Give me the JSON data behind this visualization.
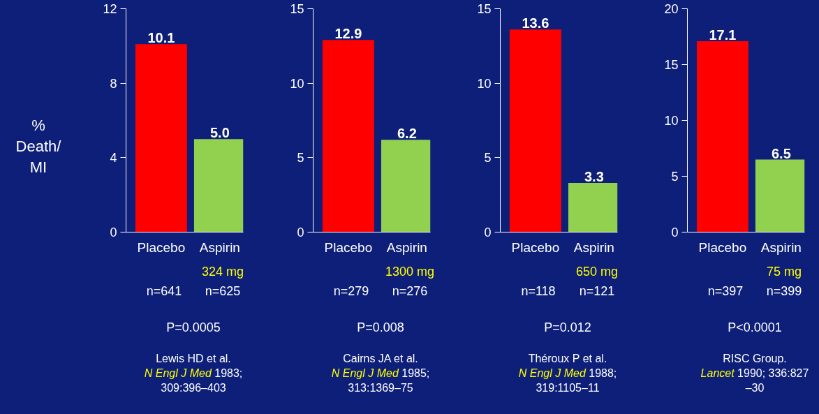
{
  "chart_data": [
    {
      "type": "bar",
      "ylabel": "% Death/ MI",
      "categories": [
        "Placebo",
        "Aspirin"
      ],
      "values": [
        10.1,
        5.0
      ],
      "value_labels": [
        "10.1",
        "5.0"
      ],
      "colors": [
        "#ff0000",
        "#92d050"
      ],
      "ylim": [
        0,
        12
      ],
      "yticks": [
        0,
        4,
        8,
        12
      ],
      "annotations": [
        "324 mg",
        "n=641",
        "n=625",
        "P=0.0005",
        "Lewis HD et al.",
        "N Engl J Med",
        "1983;",
        "309:396–403"
      ]
    },
    {
      "type": "bar",
      "categories": [
        "Placebo",
        "Aspirin"
      ],
      "values": [
        12.9,
        6.2
      ],
      "value_labels": [
        "12.9",
        "6.2"
      ],
      "colors": [
        "#ff0000",
        "#92d050"
      ],
      "ylim": [
        0,
        15
      ],
      "yticks": [
        0,
        5,
        10,
        15
      ],
      "annotations": [
        "1300 mg",
        "n=279",
        "n=276",
        "P=0.008",
        "Cairns JA et al.",
        "N Engl J Med",
        "1985;",
        "313:1369–75"
      ]
    },
    {
      "type": "bar",
      "categories": [
        "Placebo",
        "Aspirin"
      ],
      "values": [
        13.6,
        3.3
      ],
      "value_labels": [
        "13.6",
        "3.3"
      ],
      "colors": [
        "#ff0000",
        "#92d050"
      ],
      "ylim": [
        0,
        15
      ],
      "yticks": [
        0,
        5,
        10,
        15
      ],
      "annotations": [
        "650 mg",
        "n=118",
        "n=121",
        "P=0.012",
        "Théroux P et al.",
        "N Engl J Med",
        "1988;",
        "319:1105–11"
      ]
    },
    {
      "type": "bar",
      "categories": [
        "Placebo",
        "Aspirin"
      ],
      "values": [
        17.1,
        6.5
      ],
      "value_labels": [
        "17.1",
        "6.5"
      ],
      "colors": [
        "#ff0000",
        "#92d050"
      ],
      "ylim": [
        0,
        20
      ],
      "yticks": [
        0,
        5,
        10,
        15,
        20
      ],
      "annotations": [
        "75 mg",
        "n=397",
        "n=399",
        "P<0.0001",
        "RISC Group.",
        "Lancet",
        "1990; 336:827",
        "–30"
      ]
    }
  ]
}
